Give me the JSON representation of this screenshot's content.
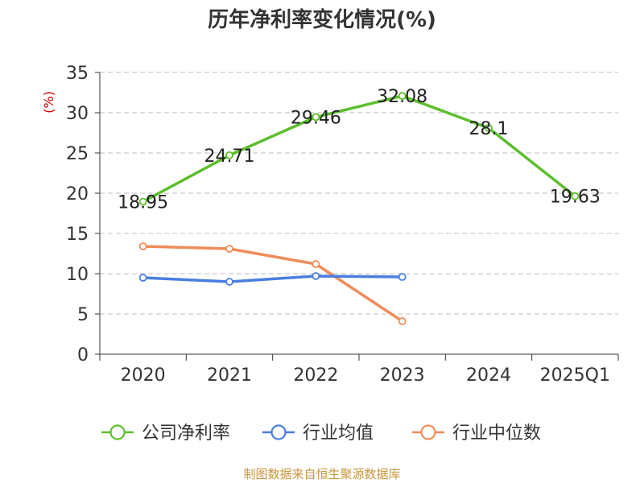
{
  "chart_data": {
    "type": "line",
    "title": "历年净利率变化情况(%)",
    "ylabel": "(%)",
    "xlabel": "",
    "categories": [
      "2020",
      "2021",
      "2022",
      "2023",
      "2024",
      "2025Q1"
    ],
    "y_ticks": [
      "0",
      "5",
      "10",
      "15",
      "20",
      "25",
      "30",
      "35"
    ],
    "ylim": [
      0,
      35
    ],
    "grid": true,
    "series": [
      {
        "name": "公司净利率",
        "color": "#5dbe2d",
        "values": [
          18.95,
          24.71,
          29.46,
          32.08,
          28.1,
          19.63
        ],
        "labels": [
          "18.95",
          "24.71",
          "29.46",
          "32.08",
          "28.1",
          "19.63"
        ]
      },
      {
        "name": "行业均值",
        "color": "#4a7ee0",
        "values": [
          9.5,
          9.0,
          9.7,
          9.6,
          null,
          null
        ],
        "labels": []
      },
      {
        "name": "行业中位数",
        "color": "#f08c5a",
        "values": [
          13.4,
          13.1,
          11.2,
          4.1,
          null,
          null
        ],
        "labels": []
      }
    ],
    "legend": [
      "公司净利率",
      "行业均值",
      "行业中位数"
    ],
    "legend_position": "bottom",
    "source": "制图数据来自恒生聚源数据库"
  }
}
